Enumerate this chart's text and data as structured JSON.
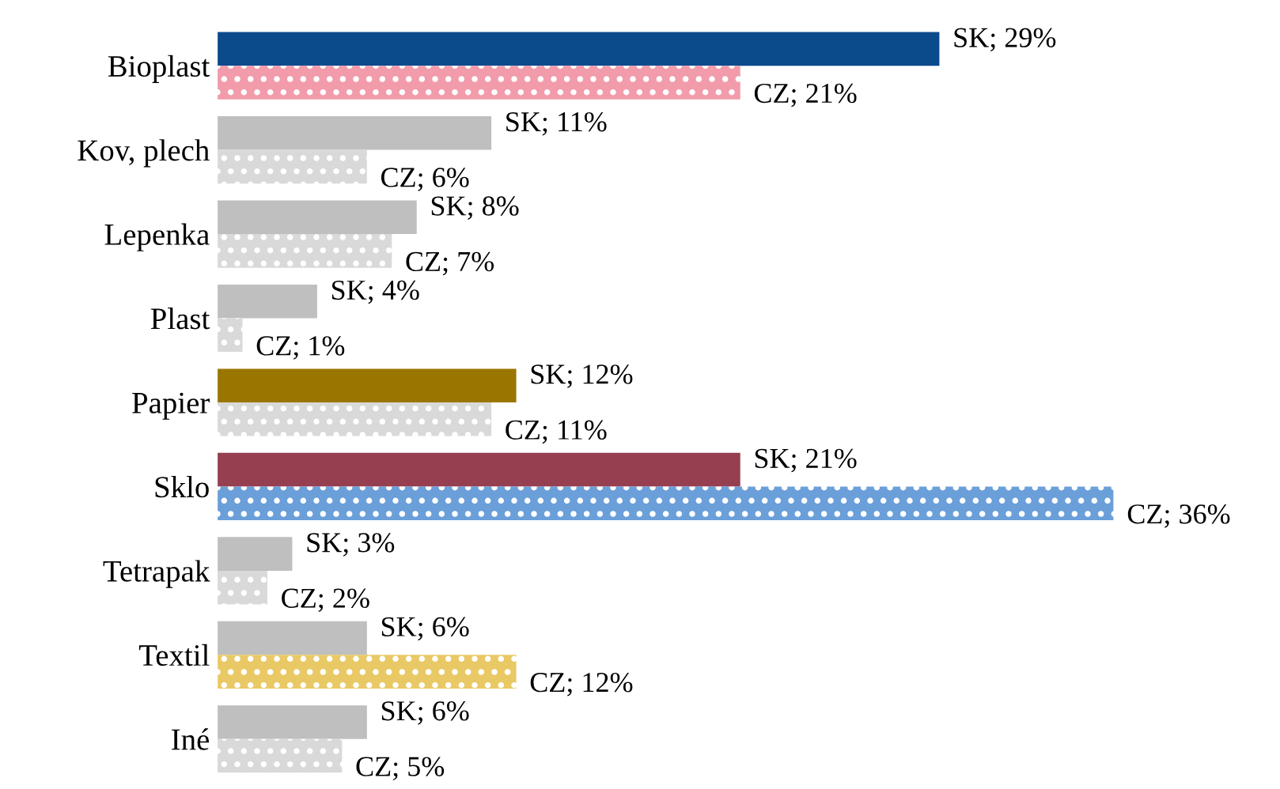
{
  "chart_data": {
    "type": "bar",
    "orientation": "horizontal",
    "legend": false,
    "grid": false,
    "tick_labels": "y",
    "categories": [
      "Bioplast",
      "Kov, plech",
      "Lepenka",
      "Plast",
      "Papier",
      "Sklo",
      "Tetrapak",
      "Textil",
      "Iné"
    ],
    "series": [
      {
        "values": [
          29,
          11,
          8,
          4,
          12,
          21,
          3,
          6,
          6
        ],
        "colors": [
          "#0b4a8b",
          "#bfbfbf",
          "#bfbfbf",
          "#bfbfbf",
          "#9a7600",
          "#953f51",
          "#bfbfbf",
          "#bfbfbf",
          "#bfbfbf"
        ],
        "value_labels": [
          "SK; 29%",
          "SK; 11%",
          "SK; 8%",
          "SK; 4%",
          "SK; 12%",
          "SK; 21%",
          "SK; 3%",
          "SK; 6%",
          "SK; 6%"
        ]
      },
      {
        "values": [
          21,
          6,
          7,
          1,
          11,
          36,
          2,
          12,
          5
        ],
        "colors": [
          "#f19bab",
          "#d9d9d9",
          "#d9d9d9",
          "#d9d9d9",
          "#d9d9d9",
          "#6a9fd9",
          "#d9d9d9",
          "#e9c965",
          "#d9d9d9"
        ],
        "value_labels": [
          "CZ; 21%",
          "CZ; 6%",
          "CZ; 7%",
          "CZ; 1%",
          "CZ; 11%",
          "CZ; 36%",
          "CZ; 2%",
          "CZ; 12%",
          "CZ; 5%"
        ]
      }
    ]
  }
}
